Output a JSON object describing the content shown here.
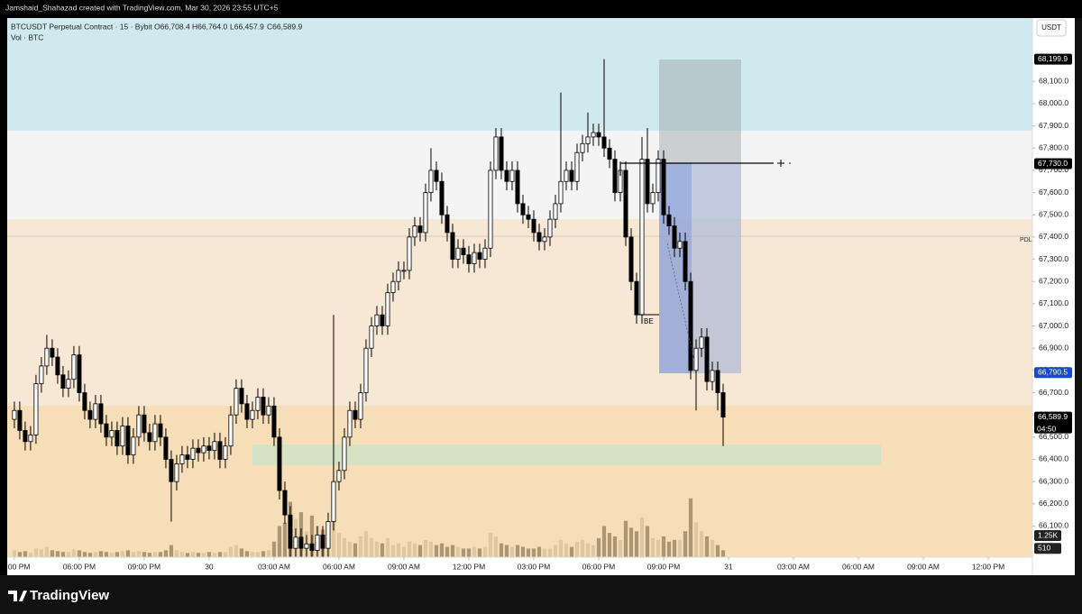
{
  "header": {
    "caption": "Jamshaid_Shahazad created with TradingView.com, Mar 30, 2026 23:55 UTC+5",
    "symbol": "BTCUSDT Perpetual Contract · 15 · Bybit",
    "open": "O66,708.4",
    "high": "H66,764.0",
    "low": "L66,457.9",
    "close": "C66,589.9",
    "volume_label": "Vol · BTC",
    "currency": "USDT",
    "countdown": "04:50",
    "pdl": "PDL",
    "be": "BE",
    "brand": "TradingView"
  },
  "chart_data": {
    "type": "candlestick",
    "x": [
      -9,
      -8.75,
      -8.5,
      -8.25,
      -8,
      -7.75,
      -7.5,
      -7.25,
      -7,
      -6.75,
      -6.5,
      -6.25,
      -6,
      -5.75,
      -5.5,
      -5.25,
      -5,
      -4.75,
      -4.5,
      -4.25,
      -4,
      -3.75,
      -3.5,
      -3.25,
      -3,
      -2.75,
      -2.5,
      -2.25,
      -2,
      -1.75,
      -1.5,
      -1.25,
      -1,
      -0.75,
      -0.5,
      -0.25,
      0,
      0.25,
      0.5,
      0.75,
      1,
      1.25,
      1.5,
      1.75,
      2,
      2.25,
      2.5,
      2.75,
      3,
      3.25,
      3.5,
      3.75,
      4,
      4.25,
      4.5,
      4.75,
      5,
      5.25,
      5.5,
      5.75,
      6,
      6.25,
      6.5,
      6.75,
      7,
      7.25,
      7.5,
      7.75,
      8,
      8.25,
      8.5,
      8.75,
      9,
      9.25,
      9.5,
      9.75,
      10,
      10.25,
      10.5,
      10.75,
      11,
      11.25,
      11.5,
      11.75,
      12,
      12.25,
      12.5,
      12.75,
      13,
      13.25,
      13.5,
      13.75,
      14,
      14.25,
      14.5,
      14.75,
      15,
      15.25,
      15.5,
      15.75,
      16,
      16.25,
      16.5,
      16.75,
      17,
      17.25,
      17.5,
      17.75,
      18,
      18.25,
      18.5,
      18.75,
      19,
      19.25,
      19.5,
      19.75,
      20,
      20.25,
      20.5,
      20.75,
      21,
      21.25,
      21.5,
      21.75,
      22,
      22.25,
      22.5,
      22.75,
      23,
      23.25,
      23.5,
      23.75
    ],
    "open": [
      66580,
      66620,
      66530,
      66480,
      66510,
      66740,
      66820,
      66900,
      66860,
      66780,
      66720,
      66760,
      66870,
      66700,
      66620,
      66580,
      66650,
      66560,
      66500,
      66530,
      66460,
      66550,
      66420,
      66500,
      66600,
      66520,
      66480,
      66560,
      66500,
      66400,
      66300,
      66380,
      66420,
      66400,
      66450,
      66430,
      66460,
      66440,
      66480,
      66400,
      66460,
      66600,
      66720,
      66650,
      66580,
      66620,
      66680,
      66600,
      66640,
      66500,
      66260,
      66150,
      66000,
      66050,
      66000,
      66020,
      65990,
      66060,
      66000,
      66120,
      66300,
      66350,
      66500,
      66620,
      66580,
      66700,
      66900,
      67000,
      67050,
      67000,
      67150,
      67200,
      67250,
      67250,
      67400,
      67450,
      67420,
      67600,
      67700,
      67650,
      67500,
      67420,
      67300,
      67350,
      67320,
      67280,
      67330,
      67300,
      67350,
      67700,
      67850,
      67700,
      67650,
      67700,
      67550,
      67500,
      67480,
      67420,
      67380,
      67400,
      67480,
      67550,
      67650,
      67700,
      67650,
      67780,
      67820,
      67850,
      67870,
      67850,
      67800,
      67750,
      67600,
      67700,
      67400,
      67200,
      67050,
      67750,
      67550,
      67600,
      67750,
      67500,
      67450,
      67350,
      67380,
      67200,
      66800,
      66900,
      66950,
      66750,
      66800,
      66700
    ],
    "high": [
      66660,
      66660,
      66570,
      66550,
      66780,
      66860,
      66960,
      66940,
      66900,
      66820,
      66800,
      66910,
      66910,
      66740,
      66660,
      66690,
      66690,
      66600,
      66570,
      66570,
      66590,
      66590,
      66540,
      66640,
      66640,
      66560,
      66600,
      66600,
      66540,
      66440,
      66420,
      66460,
      66460,
      66490,
      66490,
      66500,
      66500,
      66520,
      66520,
      66500,
      66640,
      66760,
      66760,
      66690,
      66660,
      66720,
      66720,
      66680,
      66680,
      66540,
      66300,
      66190,
      66090,
      66090,
      66060,
      66060,
      66100,
      66100,
      66160,
      67050,
      66390,
      66540,
      66660,
      66660,
      66740,
      66940,
      67040,
      67090,
      67090,
      67190,
      67240,
      67290,
      67290,
      67440,
      67490,
      67490,
      67640,
      67800,
      67740,
      67690,
      67540,
      67460,
      67390,
      67390,
      67360,
      67370,
      67370,
      67390,
      67740,
      67890,
      67890,
      67740,
      67740,
      67740,
      67590,
      67540,
      67520,
      67460,
      67440,
      67520,
      67590,
      68050,
      67740,
      67740,
      67820,
      67860,
      67960,
      67910,
      67910,
      68200,
      67840,
      67790,
      67740,
      67740,
      67440,
      67240,
      67850,
      67890,
      67640,
      67790,
      67790,
      67540,
      67490,
      67420,
      67420,
      67240,
      66940,
      66990,
      66990,
      66840,
      66840,
      66740
    ],
    "low": [
      66540,
      66490,
      66440,
      66440,
      66470,
      66700,
      66780,
      66820,
      66740,
      66680,
      66680,
      66720,
      66660,
      66580,
      66540,
      66540,
      66520,
      66460,
      66460,
      66420,
      66420,
      66380,
      66380,
      66460,
      66480,
      66440,
      66440,
      66460,
      66360,
      66120,
      66260,
      66340,
      66360,
      66360,
      66390,
      66390,
      66400,
      66400,
      66360,
      66360,
      66420,
      66560,
      66610,
      66540,
      66540,
      66580,
      66560,
      66560,
      66460,
      66220,
      66110,
      65960,
      65960,
      65960,
      65960,
      65960,
      65960,
      65960,
      65960,
      66080,
      66260,
      66310,
      66460,
      66540,
      66540,
      66660,
      66860,
      66960,
      66960,
      66960,
      67110,
      67160,
      67210,
      67210,
      67360,
      67380,
      67380,
      67560,
      67610,
      67460,
      67380,
      67260,
      67260,
      67280,
      67240,
      67240,
      67260,
      67260,
      67310,
      67660,
      67660,
      67610,
      67610,
      67510,
      67460,
      67440,
      67380,
      67340,
      67340,
      67360,
      67440,
      67510,
      67610,
      67610,
      67610,
      67740,
      67780,
      67810,
      67810,
      67760,
      67710,
      67560,
      67560,
      67360,
      67160,
      67010,
      67010,
      67510,
      67510,
      67560,
      67460,
      67410,
      67310,
      67310,
      67160,
      66760,
      66620,
      66860,
      66710,
      66710,
      66620,
      66460
    ],
    "close": [
      66620,
      66530,
      66480,
      66510,
      66740,
      66820,
      66900,
      66860,
      66780,
      66720,
      66760,
      66870,
      66700,
      66620,
      66580,
      66650,
      66560,
      66500,
      66530,
      66460,
      66550,
      66420,
      66500,
      66600,
      66520,
      66480,
      66560,
      66500,
      66400,
      66300,
      66380,
      66420,
      66400,
      66450,
      66430,
      66460,
      66440,
      66480,
      66400,
      66460,
      66600,
      66720,
      66650,
      66580,
      66620,
      66680,
      66600,
      66640,
      66500,
      66260,
      66150,
      66000,
      66050,
      66000,
      66020,
      65990,
      66060,
      66000,
      66120,
      66300,
      66350,
      66500,
      66620,
      66580,
      66700,
      66900,
      67000,
      67050,
      67000,
      67150,
      67200,
      67250,
      67250,
      67400,
      67450,
      67420,
      67600,
      67700,
      67650,
      67500,
      67420,
      67300,
      67350,
      67320,
      67280,
      67330,
      67300,
      67350,
      67700,
      67850,
      67700,
      67650,
      67700,
      67550,
      67500,
      67480,
      67420,
      67380,
      67400,
      67480,
      67550,
      67650,
      67700,
      67650,
      67780,
      67820,
      67850,
      67870,
      67850,
      67800,
      67750,
      67600,
      67700,
      67400,
      67200,
      67050,
      67750,
      67550,
      67600,
      67750,
      67500,
      67450,
      67350,
      67380,
      67200,
      66800,
      66900,
      66950,
      66750,
      66800,
      66700,
      66590
    ],
    "volume": [
      400,
      300,
      350,
      250,
      500,
      450,
      600,
      400,
      350,
      300,
      300,
      450,
      400,
      300,
      250,
      300,
      350,
      300,
      250,
      300,
      350,
      400,
      300,
      350,
      300,
      250,
      300,
      300,
      400,
      700,
      400,
      300,
      250,
      300,
      250,
      250,
      300,
      250,
      300,
      300,
      600,
      700,
      500,
      350,
      300,
      300,
      350,
      400,
      900,
      1800,
      2000,
      3200,
      2200,
      2600,
      1500,
      2400,
      1800,
      1600,
      1500,
      2200,
      1400,
      1100,
      900,
      800,
      1200,
      1500,
      1100,
      900,
      800,
      1100,
      700,
      800,
      600,
      900,
      800,
      700,
      1000,
      900,
      700,
      800,
      600,
      700,
      600,
      500,
      500,
      600,
      500,
      600,
      1400,
      1200,
      800,
      700,
      600,
      700,
      600,
      500,
      500,
      600,
      500,
      500,
      700,
      1000,
      800,
      600,
      900,
      1000,
      800,
      700,
      1100,
      1800,
      1400,
      1200,
      1000,
      2100,
      1700,
      1500,
      2300,
      1800,
      1100,
      1000,
      1200,
      900,
      1000,
      1000,
      1500,
      3400,
      2000,
      1500,
      1200,
      1000,
      700,
      400
    ],
    "xlim": [
      -9.33,
      38.04
    ],
    "ylim": [
      65960,
      68385
    ],
    "vol_lim": [
      0,
      31150
    ],
    "xticks": [
      {
        "value": -9,
        "label": ":00 PM"
      },
      {
        "value": -6,
        "label": "06:00 PM"
      },
      {
        "value": -3,
        "label": "09:00 PM"
      },
      {
        "value": 0,
        "label": "30"
      },
      {
        "value": 3,
        "label": "03:00 AM"
      },
      {
        "value": 6,
        "label": "06:00 AM"
      },
      {
        "value": 9,
        "label": "09:00 AM"
      },
      {
        "value": 12,
        "label": "12:00 PM"
      },
      {
        "value": 15,
        "label": "03:00 PM"
      },
      {
        "value": 18,
        "label": "06:00 PM"
      },
      {
        "value": 21,
        "label": "09:00 PM"
      },
      {
        "value": 24,
        "label": "31"
      },
      {
        "value": 27,
        "label": "03:00 AM"
      },
      {
        "value": 30,
        "label": "06:00 AM"
      },
      {
        "value": 33,
        "label": "09:00 AM"
      },
      {
        "value": 36,
        "label": "12:00 PM"
      }
    ],
    "yticks": [
      {
        "value": 68100,
        "label": "68,100.0"
      },
      {
        "value": 68000,
        "label": "68,000.0"
      },
      {
        "value": 67900,
        "label": "67,900.0"
      },
      {
        "value": 67800,
        "label": "67,800.0"
      },
      {
        "value": 67700,
        "label": "67,700.0"
      },
      {
        "value": 67600,
        "label": "67,600.0"
      },
      {
        "value": 67500,
        "label": "67,500.0"
      },
      {
        "value": 67400,
        "label": "67,400.0"
      },
      {
        "value": 67300,
        "label": "67,300.0"
      },
      {
        "value": 67200,
        "label": "67,200.0"
      },
      {
        "value": 67100,
        "label": "67,100.0"
      },
      {
        "value": 67000,
        "label": "67,000.0"
      },
      {
        "value": 66900,
        "label": "66,900.0"
      },
      {
        "value": 66800,
        "label": "66,800.0"
      },
      {
        "value": 66700,
        "label": "66,700.0"
      },
      {
        "value": 66600,
        "label": "66,600.0"
      },
      {
        "value": 66500,
        "label": "66,500.0"
      },
      {
        "value": 66400,
        "label": "66,400.0"
      },
      {
        "value": 66300,
        "label": "66,300.0"
      },
      {
        "value": 66200,
        "label": "66,200.0"
      },
      {
        "value": 66100,
        "label": "66,100.0"
      }
    ],
    "price_labels": [
      {
        "value": 68199.9,
        "label": "68,199.9",
        "color": "#000000"
      },
      {
        "value": 67730,
        "label": "67,730.0",
        "color": "#000000"
      },
      {
        "value": 66790.5,
        "label": "66,790.5",
        "color": "#1848cc"
      },
      {
        "value": 66589.9,
        "label": "66,589.9",
        "color": "#000000"
      }
    ],
    "vol_ticks": [
      {
        "value": 1250,
        "label": "1.25K"
      },
      510
    ],
    "up_color": "#ffffff",
    "down_color": "#000000",
    "vol_up_color": "#d8c29f",
    "vol_down_color": "#9a8463"
  }
}
